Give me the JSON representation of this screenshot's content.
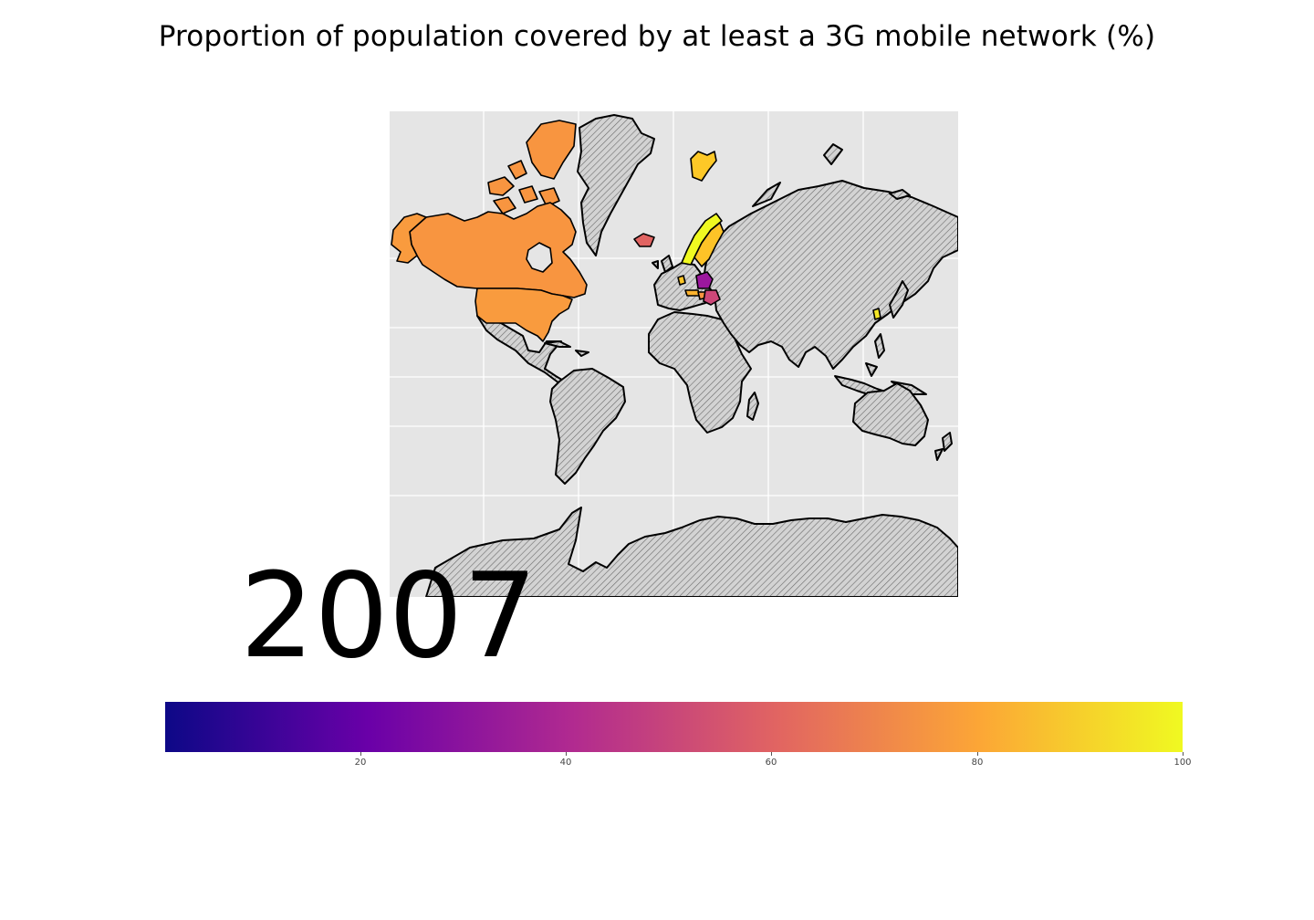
{
  "title": "Proportion of population covered by at least a 3G mobile network (%)",
  "year": "2007",
  "map": {
    "projection": "mercator",
    "background_color": "#e5e5e5",
    "no_data_style": "hatched grey",
    "colormap": "plasma",
    "colored_regions": [
      {
        "region": "Canada",
        "color": "#f89540"
      },
      {
        "region": "United States",
        "color": "#f99b3e"
      },
      {
        "region": "Norway",
        "color": "#f0f921"
      },
      {
        "region": "Sweden",
        "color": "#fdc328"
      },
      {
        "region": "Svalbard",
        "color": "#fdc827"
      },
      {
        "region": "Iceland",
        "color": "#e16462"
      },
      {
        "region": "Poland",
        "color": "#9c179e"
      },
      {
        "region": "Romania",
        "color": "#cc4778"
      },
      {
        "region": "Hungary",
        "color": "#f89540"
      },
      {
        "region": "Austria",
        "color": "#fdb32f"
      },
      {
        "region": "Belgium",
        "color": "#fdc527"
      },
      {
        "region": "South Korea",
        "color": "#f4e627"
      }
    ]
  },
  "colorbar": {
    "min": 1,
    "max": 100,
    "ticks": [
      "20",
      "40",
      "60",
      "80",
      "100"
    ],
    "tick_values": [
      20,
      40,
      60,
      80,
      100
    ],
    "stops": [
      "#0d0887",
      "#6a00a8",
      "#b12a90",
      "#e16462",
      "#fca636",
      "#f0f921"
    ]
  }
}
